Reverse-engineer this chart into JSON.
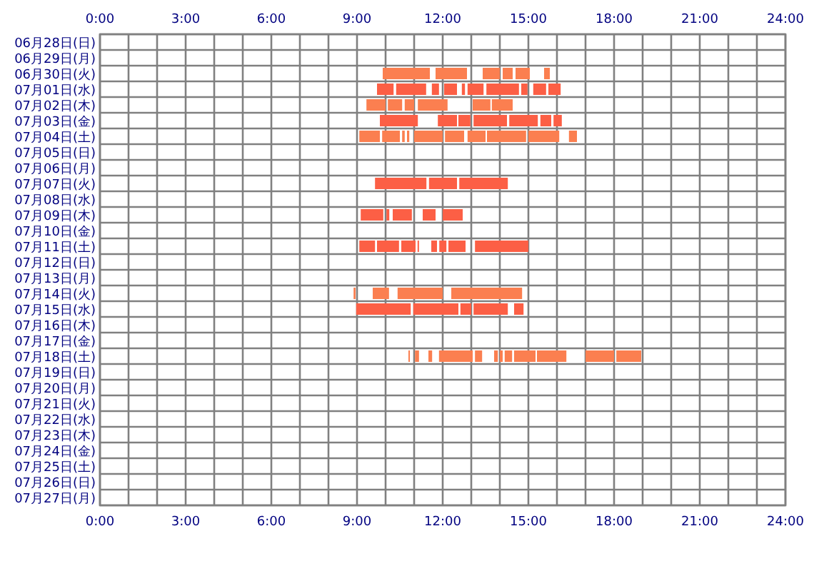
{
  "chart_data": {
    "type": "bar",
    "orientation": "horizontal",
    "grid": true,
    "categories": [
      "06月28日(日)",
      "06月29日(月)",
      "06月30日(火)",
      "07月01日(水)",
      "07月02日(木)",
      "07月03日(金)",
      "07月04日(土)",
      "07月05日(日)",
      "07月06日(月)",
      "07月07日(火)",
      "07月08日(水)",
      "07月09日(木)",
      "07月10日(金)",
      "07月11日(土)",
      "07月12日(日)",
      "07月13日(月)",
      "07月14日(火)",
      "07月15日(水)",
      "07月16日(木)",
      "07月17日(金)",
      "07月18日(土)",
      "07月19日(日)",
      "07月20日(月)",
      "07月21日(火)",
      "07月22日(水)",
      "07月23日(木)",
      "07月24日(金)",
      "07月25日(土)",
      "07月26日(日)",
      "07月27日(月)"
    ],
    "xlim": [
      0,
      24
    ],
    "xticks": [
      {
        "value": 0,
        "label": "0:00"
      },
      {
        "value": 1,
        "label": null
      },
      {
        "value": 2,
        "label": null
      },
      {
        "value": 3,
        "label": "3:00"
      },
      {
        "value": 4,
        "label": null
      },
      {
        "value": 5,
        "label": null
      },
      {
        "value": 6,
        "label": "6:00"
      },
      {
        "value": 7,
        "label": null
      },
      {
        "value": 8,
        "label": null
      },
      {
        "value": 9,
        "label": "9:00"
      },
      {
        "value": 10,
        "label": null
      },
      {
        "value": 11,
        "label": null
      },
      {
        "value": 12,
        "label": "12:00"
      },
      {
        "value": 13,
        "label": null
      },
      {
        "value": 14,
        "label": null
      },
      {
        "value": 15,
        "label": "15:00"
      },
      {
        "value": 16,
        "label": null
      },
      {
        "value": 17,
        "label": null
      },
      {
        "value": 18,
        "label": "18:00"
      },
      {
        "value": 19,
        "label": null
      },
      {
        "value": 20,
        "label": null
      },
      {
        "value": 21,
        "label": "21:00"
      },
      {
        "value": 22,
        "label": null
      },
      {
        "value": 23,
        "label": null
      },
      {
        "value": 24,
        "label": "24:00"
      }
    ],
    "x2lim": [
      0,
      24
    ],
    "x2ticks": [
      {
        "value": 0,
        "label": "0:00"
      },
      {
        "value": 1,
        "label": null
      },
      {
        "value": 2,
        "label": null
      },
      {
        "value": 3,
        "label": "3:00"
      },
      {
        "value": 4,
        "label": null
      },
      {
        "value": 5,
        "label": null
      },
      {
        "value": 6,
        "label": "6:00"
      },
      {
        "value": 7,
        "label": null
      },
      {
        "value": 8,
        "label": null
      },
      {
        "value": 9,
        "label": "9:00"
      },
      {
        "value": 10,
        "label": null
      },
      {
        "value": 11,
        "label": null
      },
      {
        "value": 12,
        "label": "12:00"
      },
      {
        "value": 13,
        "label": null
      },
      {
        "value": 14,
        "label": null
      },
      {
        "value": 15,
        "label": "15:00"
      },
      {
        "value": 16,
        "label": null
      },
      {
        "value": 17,
        "label": null
      },
      {
        "value": 18,
        "label": "18:00"
      },
      {
        "value": 19,
        "label": null
      },
      {
        "value": 20,
        "label": null
      },
      {
        "value": 21,
        "label": "21:00"
      },
      {
        "value": 22,
        "label": null
      },
      {
        "value": 23,
        "label": null
      },
      {
        "value": 24,
        "label": "24:00"
      }
    ],
    "series": [
      {
        "colors": [
          null,
          null,
          "#fb7f50",
          "#fc5f45",
          "#fb7f50",
          "#fc5f45",
          "#fb7f50",
          null,
          null,
          "#fc5f45",
          null,
          "#fc5f45",
          null,
          "#fc5f45",
          null,
          null,
          "#fb7f50",
          "#fc5f45",
          null,
          null,
          "#fb7f50",
          null,
          null,
          null,
          null,
          null,
          null,
          null,
          null,
          null
        ],
        "base": [
          null,
          null,
          9.9,
          9.7,
          9.33,
          9.8,
          9.08,
          null,
          null,
          9.63,
          null,
          9.13,
          null,
          9.08,
          null,
          null,
          8.88,
          8.97,
          null,
          null,
          10.8,
          null,
          null,
          null,
          null,
          null,
          null,
          null,
          null,
          null
        ],
        "values": [
          null,
          null,
          1.65,
          0.58,
          0.67,
          1.33,
          0.72,
          null,
          null,
          1.8,
          null,
          0.79,
          null,
          0.55,
          null,
          null,
          0.07,
          1.91,
          null,
          null,
          0.05,
          null,
          null,
          null,
          null,
          null,
          null,
          null,
          null,
          null
        ]
      },
      {
        "colors": [
          null,
          null,
          "#fb7f50",
          "#fc5f45",
          "#fb7f50",
          "#fc5f45",
          "#fb7f50",
          null,
          null,
          "#fc5f45",
          null,
          "#fc5f45",
          null,
          "#fc5f45",
          null,
          null,
          "#fb7f50",
          "#fc5f45",
          null,
          null,
          "#fb7f50",
          null,
          null,
          null,
          null,
          null,
          null,
          null,
          null,
          null
        ],
        "base": [
          null,
          null,
          11.75,
          10.37,
          10.08,
          11.83,
          9.88,
          null,
          null,
          11.52,
          null,
          10.03,
          null,
          9.7,
          null,
          null,
          9.55,
          10.97,
          null,
          null,
          11.03,
          null,
          null,
          null,
          null,
          null,
          null,
          null,
          null,
          null
        ],
        "values": [
          null,
          null,
          1.1,
          1.05,
          0.5,
          0.67,
          0.62,
          null,
          null,
          0.98,
          null,
          0.1,
          null,
          0.77,
          null,
          null,
          0.57,
          1.58,
          null,
          null,
          0.14,
          null,
          null,
          null,
          null,
          null,
          null,
          null,
          null,
          null
        ]
      },
      {
        "colors": [
          null,
          null,
          "#fb7f50",
          "#fc5f45",
          "#fb7f50",
          "#fc5f45",
          "#fb7f50",
          null,
          null,
          "#fc5f45",
          null,
          "#fc5f45",
          null,
          "#fc5f45",
          null,
          null,
          "#fb7f50",
          "#fc5f45",
          null,
          null,
          "#fb7f50",
          null,
          null,
          null,
          null,
          null,
          null,
          null,
          null,
          null
        ],
        "base": [
          null,
          null,
          13.4,
          11.62,
          10.67,
          12.55,
          10.58,
          null,
          null,
          12.58,
          null,
          10.25,
          null,
          10.55,
          null,
          null,
          10.42,
          12.62,
          null,
          null,
          11.5,
          null,
          null,
          null,
          null,
          null,
          null,
          null,
          null,
          null
        ],
        "values": [
          null,
          null,
          0.6,
          0.25,
          0.33,
          0.42,
          0.09,
          null,
          null,
          1.7,
          null,
          0.67,
          null,
          0.5,
          null,
          null,
          1.58,
          0.38,
          null,
          null,
          0.13,
          null,
          null,
          null,
          null,
          null,
          null,
          null,
          null,
          null
        ]
      },
      {
        "colors": [
          null,
          null,
          "#fb7f50",
          "#fc5f45",
          "#fb7f50",
          "#fc5f45",
          "#fb7f50",
          null,
          null,
          null,
          null,
          "#fc5f45",
          null,
          "#fc5f45",
          null,
          null,
          "#fb7f50",
          "#fc5f45",
          null,
          null,
          "#fb7f50",
          null,
          null,
          null,
          null,
          null,
          null,
          null,
          null,
          null
        ],
        "base": [
          null,
          null,
          14.1,
          12.05,
          11.13,
          13.08,
          10.75,
          null,
          null,
          null,
          null,
          11.3,
          null,
          11.12,
          null,
          null,
          12.3,
          13.08,
          null,
          null,
          11.87,
          null,
          null,
          null,
          null,
          null,
          null,
          null,
          null,
          null
        ],
        "values": [
          null,
          null,
          0.35,
          0.45,
          1.04,
          1.17,
          0.08,
          null,
          null,
          null,
          null,
          0.45,
          null,
          0.05,
          null,
          null,
          2.48,
          1.2,
          null,
          null,
          1.18,
          null,
          null,
          null,
          null,
          null,
          null,
          null,
          null,
          null
        ]
      },
      {
        "colors": [
          null,
          null,
          "#fb7f50",
          "#fc5f45",
          "#fb7f50",
          "#fc5f45",
          "#fb7f50",
          null,
          null,
          null,
          null,
          "#fc5f45",
          null,
          "#fc5f45",
          null,
          null,
          null,
          "#fc5f45",
          null,
          null,
          "#fb7f50",
          null,
          null,
          null,
          null,
          null,
          null,
          null,
          null,
          null
        ],
        "base": [
          null,
          null,
          14.55,
          12.67,
          13.05,
          14.33,
          11.0,
          null,
          null,
          null,
          null,
          12.0,
          null,
          11.6,
          null,
          null,
          null,
          14.5,
          null,
          null,
          13.13,
          null,
          null,
          null,
          null,
          null,
          null,
          null,
          null,
          null
        ],
        "values": [
          null,
          null,
          0.5,
          0.11,
          0.62,
          1.0,
          1.0,
          null,
          null,
          null,
          null,
          0.7,
          null,
          0.2,
          null,
          null,
          null,
          0.33,
          null,
          null,
          0.25,
          null,
          null,
          null,
          null,
          null,
          null,
          null,
          null,
          null
        ]
      },
      {
        "colors": [
          null,
          null,
          "#fb7f50",
          "#fc5f45",
          "#fb7f50",
          "#fc5f45",
          "#fb7f50",
          null,
          null,
          null,
          null,
          null,
          null,
          "#fc5f45",
          null,
          null,
          null,
          null,
          null,
          null,
          "#fb7f50",
          null,
          null,
          null,
          null,
          null,
          null,
          null,
          null,
          null
        ],
        "base": [
          null,
          null,
          15.55,
          12.87,
          13.72,
          15.42,
          12.08,
          null,
          null,
          null,
          null,
          null,
          null,
          11.88,
          null,
          null,
          null,
          null,
          null,
          null,
          13.8,
          null,
          null,
          null,
          null,
          null,
          null,
          null,
          null,
          null
        ],
        "values": [
          null,
          null,
          0.2,
          0.56,
          0.73,
          0.38,
          0.67,
          null,
          null,
          null,
          null,
          null,
          null,
          0.25,
          null,
          null,
          null,
          null,
          null,
          null,
          0.13,
          null,
          null,
          null,
          null,
          null,
          null,
          null,
          null,
          null
        ]
      },
      {
        "colors": [
          null,
          null,
          null,
          "#fc5f45",
          null,
          "#fc5f45",
          "#fb7f50",
          null,
          null,
          null,
          null,
          null,
          null,
          "#fc5f45",
          null,
          null,
          null,
          null,
          null,
          null,
          "#fb7f50",
          null,
          null,
          null,
          null,
          null,
          null,
          null,
          null,
          null
        ],
        "base": [
          null,
          null,
          null,
          13.53,
          null,
          15.88,
          12.87,
          null,
          null,
          null,
          null,
          null,
          null,
          12.2,
          null,
          null,
          null,
          null,
          null,
          null,
          14.0,
          null,
          null,
          null,
          null,
          null,
          null,
          null,
          null,
          null
        ],
        "values": [
          null,
          null,
          null,
          1.14,
          null,
          0.29,
          0.63,
          null,
          null,
          null,
          null,
          null,
          null,
          0.6,
          null,
          null,
          null,
          null,
          null,
          null,
          0.1,
          null,
          null,
          null,
          null,
          null,
          null,
          null,
          null,
          null
        ]
      },
      {
        "colors": [
          null,
          null,
          null,
          "#fc5f45",
          null,
          null,
          "#fb7f50",
          null,
          null,
          null,
          null,
          null,
          null,
          "#fc5f45",
          null,
          null,
          null,
          null,
          null,
          null,
          "#fb7f50",
          null,
          null,
          null,
          null,
          null,
          null,
          null,
          null,
          null
        ],
        "base": [
          null,
          null,
          null,
          14.75,
          null,
          null,
          13.55,
          null,
          null,
          null,
          null,
          null,
          null,
          13.13,
          null,
          null,
          null,
          null,
          null,
          null,
          14.17,
          null,
          null,
          null,
          null,
          null,
          null,
          null,
          null,
          null
        ],
        "values": [
          null,
          null,
          null,
          0.22,
          null,
          null,
          1.37,
          null,
          null,
          null,
          null,
          null,
          null,
          1.87,
          null,
          null,
          null,
          null,
          null,
          null,
          0.26,
          null,
          null,
          null,
          null,
          null,
          null,
          null,
          null,
          null
        ]
      },
      {
        "colors": [
          null,
          null,
          null,
          "#fc5f45",
          null,
          null,
          "#fb7f50",
          null,
          null,
          null,
          null,
          null,
          null,
          null,
          null,
          null,
          null,
          null,
          null,
          null,
          "#fb7f50",
          null,
          null,
          null,
          null,
          null,
          null,
          null,
          null,
          null
        ],
        "base": [
          null,
          null,
          null,
          15.17,
          null,
          null,
          15.0,
          null,
          null,
          null,
          null,
          null,
          null,
          null,
          null,
          null,
          null,
          null,
          null,
          null,
          14.5,
          null,
          null,
          null,
          null,
          null,
          null,
          null,
          null,
          null
        ],
        "values": [
          null,
          null,
          null,
          0.45,
          null,
          null,
          1.08,
          null,
          null,
          null,
          null,
          null,
          null,
          null,
          null,
          null,
          null,
          null,
          null,
          null,
          0.75,
          null,
          null,
          null,
          null,
          null,
          null,
          null,
          null,
          null
        ]
      },
      {
        "colors": [
          null,
          null,
          null,
          "#fc5f45",
          null,
          null,
          "#fb7f50",
          null,
          null,
          null,
          null,
          null,
          null,
          null,
          null,
          null,
          null,
          null,
          null,
          null,
          "#fb7f50",
          null,
          null,
          null,
          null,
          null,
          null,
          null,
          null,
          null
        ],
        "base": [
          null,
          null,
          null,
          15.7,
          null,
          null,
          16.42,
          null,
          null,
          null,
          null,
          null,
          null,
          null,
          null,
          null,
          null,
          null,
          null,
          null,
          15.3,
          null,
          null,
          null,
          null,
          null,
          null,
          null,
          null,
          null
        ],
        "values": [
          null,
          null,
          null,
          0.43,
          null,
          null,
          0.28,
          null,
          null,
          null,
          null,
          null,
          null,
          null,
          null,
          null,
          null,
          null,
          null,
          null,
          1.03,
          null,
          null,
          null,
          null,
          null,
          null,
          null,
          null,
          null
        ]
      },
      {
        "color": "#fb7f50",
        "base": [
          null,
          null,
          null,
          null,
          null,
          null,
          null,
          null,
          null,
          null,
          null,
          null,
          null,
          null,
          null,
          null,
          null,
          null,
          null,
          null,
          17.0,
          null,
          null,
          null,
          null,
          null,
          null,
          null,
          null,
          null
        ],
        "values": [
          null,
          null,
          null,
          null,
          null,
          null,
          null,
          null,
          null,
          null,
          null,
          null,
          null,
          null,
          null,
          null,
          null,
          null,
          null,
          null,
          1.0,
          null,
          null,
          null,
          null,
          null,
          null,
          null,
          null,
          null
        ]
      },
      {
        "color": "#fb7f50",
        "base": [
          null,
          null,
          null,
          null,
          null,
          null,
          null,
          null,
          null,
          null,
          null,
          null,
          null,
          null,
          null,
          null,
          null,
          null,
          null,
          null,
          18.08,
          null,
          null,
          null,
          null,
          null,
          null,
          null,
          null,
          null
        ],
        "values": [
          null,
          null,
          null,
          null,
          null,
          null,
          null,
          null,
          null,
          null,
          null,
          null,
          null,
          null,
          null,
          null,
          null,
          null,
          null,
          null,
          0.87,
          null,
          null,
          null,
          null,
          null,
          null,
          null,
          null,
          null
        ]
      }
    ]
  }
}
